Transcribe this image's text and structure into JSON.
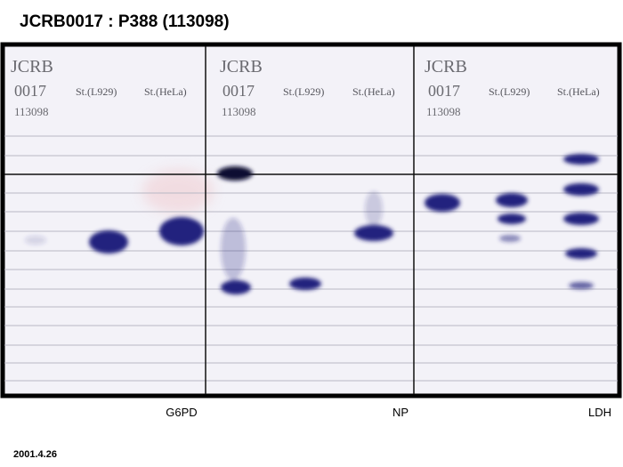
{
  "header": {
    "title": "JCRB0017 : P388 (113098)"
  },
  "panels": [
    {
      "id_lines": [
        "JCRB",
        "0017",
        "113098"
      ],
      "lanes": [
        "St.(L929)",
        "St.(HeLa)"
      ],
      "enzyme": "G6PD"
    },
    {
      "id_lines": [
        "JCRB",
        "0017",
        "113098"
      ],
      "lanes": [
        "St.(L929)",
        "St.(HeLa)"
      ],
      "enzyme": "NP"
    },
    {
      "id_lines": [
        "JCRB",
        "0017",
        "113098"
      ],
      "lanes": [
        "St.(L929)",
        "St.(HeLa)"
      ],
      "enzyme": "LDH"
    }
  ],
  "footer": {
    "date": "2001.4.26"
  }
}
